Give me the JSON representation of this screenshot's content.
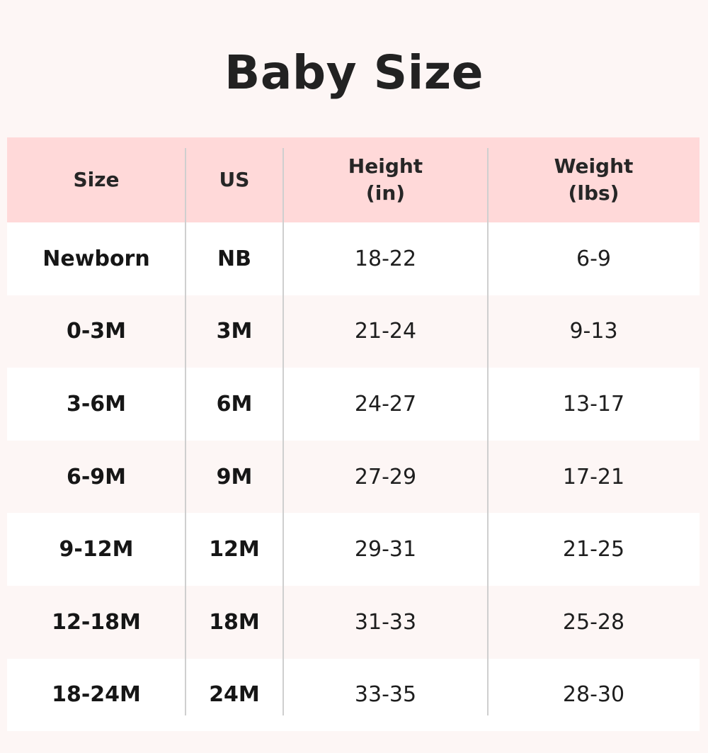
{
  "title": "Baby Size",
  "header": {
    "size": "Size",
    "us": "US",
    "height_line1": "Height",
    "height_line2": "(in)",
    "weight_line1": "Weight",
    "weight_line2": "(lbs)"
  },
  "rows": [
    {
      "size": "Newborn",
      "us": "NB",
      "height": "18-22",
      "weight": "6-9"
    },
    {
      "size": "0-3M",
      "us": "3M",
      "height": "21-24",
      "weight": "9-13"
    },
    {
      "size": "3-6M",
      "us": "6M",
      "height": "24-27",
      "weight": "13-17"
    },
    {
      "size": "6-9M",
      "us": "9M",
      "height": "27-29",
      "weight": "17-21"
    },
    {
      "size": "9-12M",
      "us": "12M",
      "height": "29-31",
      "weight": "21-25"
    },
    {
      "size": "12-18M",
      "us": "18M",
      "height": "31-33",
      "weight": "25-28"
    },
    {
      "size": "18-24M",
      "us": "24M",
      "height": "33-35",
      "weight": "28-30"
    }
  ],
  "colors": {
    "header_bg": "#ffd9d9",
    "page_bg": "#fdf6f5",
    "row_alt_bg": "#ffffff"
  }
}
